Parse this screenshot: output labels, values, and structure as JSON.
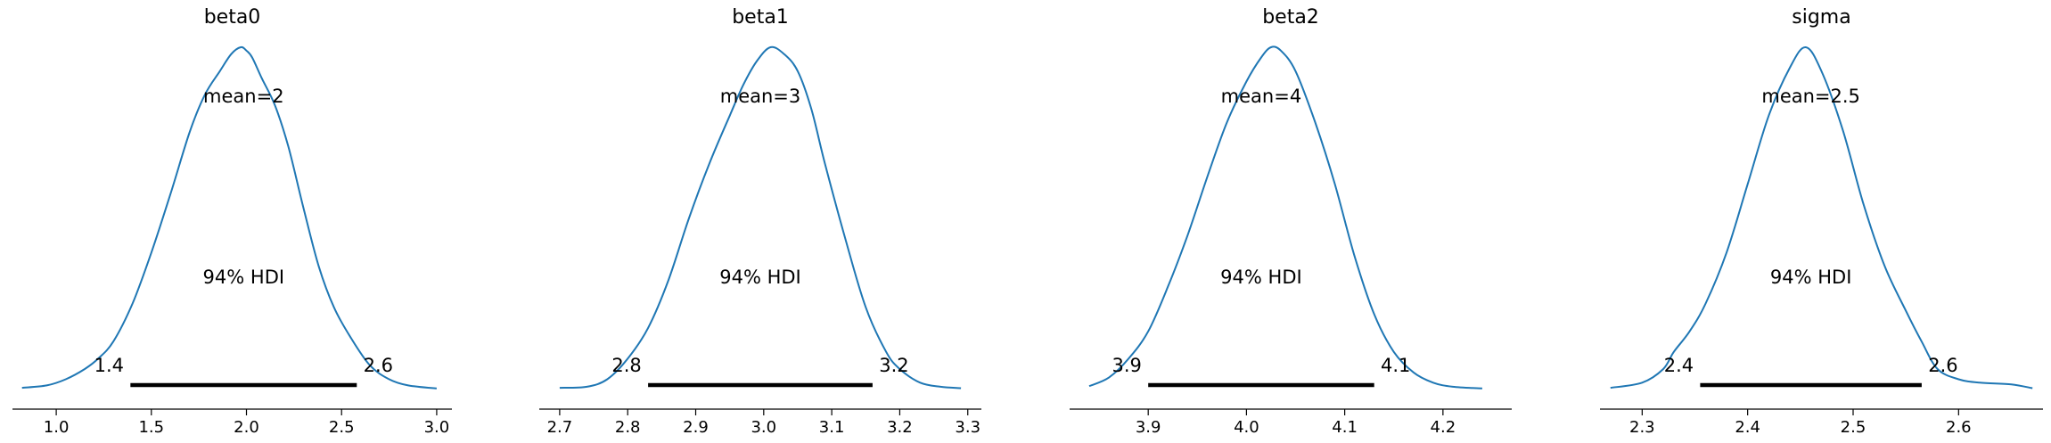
{
  "chart_data": [
    {
      "type": "line",
      "title": "beta0",
      "mean_label": "mean=2",
      "hdi_label": "94% HDI",
      "hdi": [
        1.39,
        2.58
      ],
      "hdi_low_label": "1.4",
      "hdi_high_label": "2.6",
      "xlim": [
        0.77,
        3.08
      ],
      "xticks": [
        1.0,
        1.5,
        2.0,
        2.5,
        3.0
      ],
      "xtick_labels": [
        "1.0",
        "1.5",
        "2.0",
        "2.5",
        "3.0"
      ],
      "x": [
        0.82,
        0.95,
        1.05,
        1.15,
        1.22,
        1.3,
        1.4,
        1.5,
        1.6,
        1.7,
        1.78,
        1.86,
        1.92,
        1.97,
        2.0,
        2.03,
        2.08,
        2.15,
        2.22,
        2.3,
        2.38,
        2.46,
        2.55,
        2.65,
        2.75,
        2.85,
        3.0
      ],
      "density": [
        0.005,
        0.012,
        0.03,
        0.06,
        0.09,
        0.14,
        0.25,
        0.4,
        0.57,
        0.75,
        0.86,
        0.93,
        0.98,
        1.0,
        0.99,
        0.97,
        0.91,
        0.83,
        0.71,
        0.53,
        0.36,
        0.24,
        0.15,
        0.07,
        0.03,
        0.012,
        0.003
      ]
    },
    {
      "type": "line",
      "title": "beta1",
      "mean_label": "mean=3",
      "hdi_label": "94% HDI",
      "hdi": [
        2.83,
        3.16
      ],
      "hdi_low_label": "2.8",
      "hdi_high_label": "3.2",
      "xlim": [
        2.67,
        3.32
      ],
      "xticks": [
        2.7,
        2.8,
        2.9,
        3.0,
        3.1,
        3.2,
        3.3
      ],
      "xtick_labels": [
        "2.7",
        "2.8",
        "2.9",
        "3.0",
        "3.1",
        "3.2",
        "3.3"
      ],
      "x": [
        2.7,
        2.74,
        2.77,
        2.8,
        2.83,
        2.86,
        2.89,
        2.92,
        2.95,
        2.97,
        2.99,
        3.01,
        3.03,
        3.05,
        3.07,
        3.09,
        3.12,
        3.15,
        3.18,
        3.2,
        3.23,
        3.26,
        3.29
      ],
      "density": [
        0.005,
        0.008,
        0.03,
        0.09,
        0.18,
        0.32,
        0.5,
        0.66,
        0.8,
        0.89,
        0.96,
        1.0,
        0.98,
        0.93,
        0.82,
        0.66,
        0.44,
        0.24,
        0.11,
        0.06,
        0.02,
        0.008,
        0.004
      ]
    },
    {
      "type": "line",
      "title": "beta2",
      "mean_label": "mean=4",
      "hdi_label": "94% HDI",
      "hdi": [
        3.9,
        4.13
      ],
      "hdi_low_label": "3.9",
      "hdi_high_label": "4.1",
      "xlim": [
        3.82,
        4.27
      ],
      "xticks": [
        3.9,
        4.0,
        4.1,
        4.2
      ],
      "xtick_labels": [
        "3.9",
        "4.0",
        "4.1",
        "4.2"
      ],
      "x": [
        3.84,
        3.86,
        3.88,
        3.9,
        3.92,
        3.94,
        3.96,
        3.98,
        4.0,
        4.015,
        4.025,
        4.035,
        4.05,
        4.07,
        4.09,
        4.11,
        4.13,
        4.15,
        4.17,
        4.19,
        4.21,
        4.24
      ],
      "density": [
        0.01,
        0.035,
        0.09,
        0.17,
        0.3,
        0.45,
        0.62,
        0.78,
        0.9,
        0.97,
        1.0,
        0.99,
        0.93,
        0.78,
        0.6,
        0.39,
        0.22,
        0.11,
        0.05,
        0.02,
        0.008,
        0.003
      ]
    },
    {
      "type": "line",
      "title": "sigma",
      "mean_label": "mean=2.5",
      "hdi_label": "94% HDI",
      "hdi": [
        2.355,
        2.565
      ],
      "hdi_low_label": "2.4",
      "hdi_high_label": "2.6",
      "xlim": [
        2.26,
        2.68
      ],
      "xticks": [
        2.3,
        2.4,
        2.5,
        2.6
      ],
      "xtick_labels": [
        "2.3",
        "2.4",
        "2.5",
        "2.6"
      ],
      "x": [
        2.27,
        2.3,
        2.32,
        2.33,
        2.345,
        2.36,
        2.38,
        2.4,
        2.42,
        2.44,
        2.455,
        2.47,
        2.49,
        2.51,
        2.53,
        2.55,
        2.565,
        2.58,
        2.6,
        2.62,
        2.65,
        2.67
      ],
      "density": [
        0.005,
        0.02,
        0.06,
        0.11,
        0.17,
        0.25,
        0.4,
        0.6,
        0.8,
        0.94,
        1.0,
        0.93,
        0.76,
        0.54,
        0.36,
        0.23,
        0.14,
        0.06,
        0.03,
        0.02,
        0.015,
        0.004
      ]
    }
  ],
  "colors": {
    "kde": "#1f77b4",
    "hdi": "#000000",
    "axis": "#000000"
  }
}
